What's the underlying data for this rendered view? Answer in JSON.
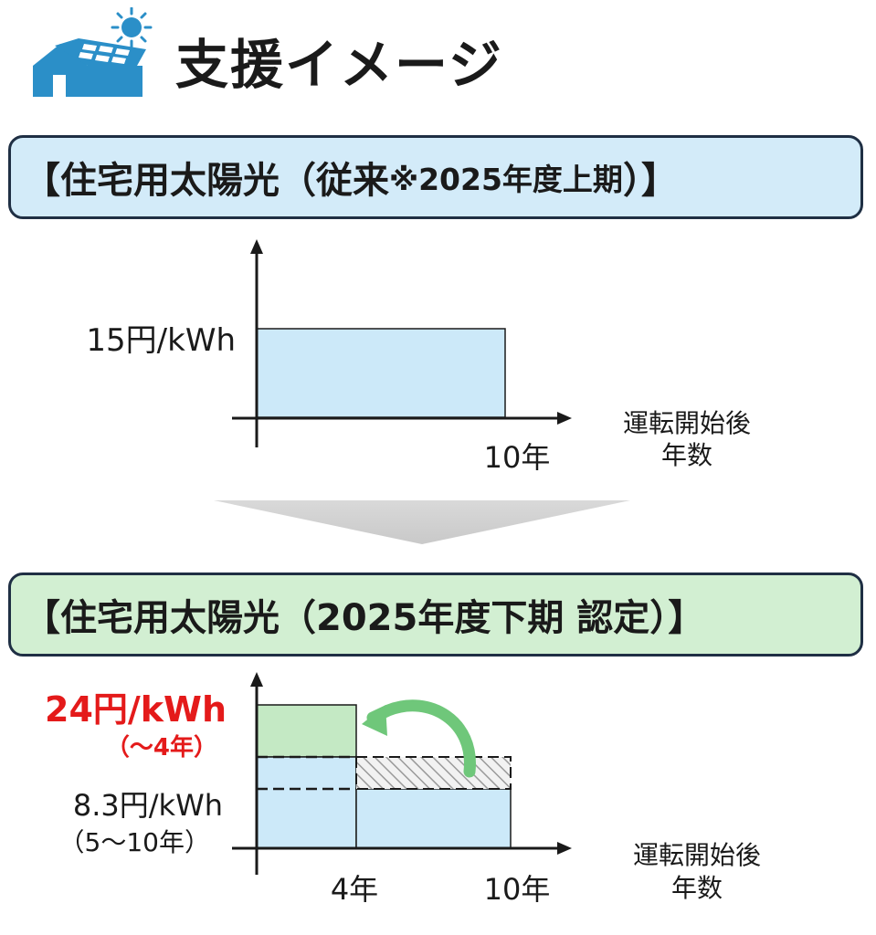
{
  "header": {
    "title": "支援イメージ",
    "logo_icon": "solar-house-icon"
  },
  "colors": {
    "accent_blue": "#2b8fc8",
    "banner_blue": "#d3ebf9",
    "banner_green": "#d2efd2",
    "bar_blue": "#cce9f9",
    "bar_green": "#c4e9c4",
    "arrow_green": "#6fc77a",
    "highlight_red": "#e41a1a"
  },
  "before": {
    "banner_prefix": "【住宅用太陽光（従来 ",
    "banner_note": "※2025年度上期",
    "banner_suffix": "）】",
    "rate_label": "15円/kWh",
    "end_label": "10年",
    "x_axis_label_1": "運転開始後",
    "x_axis_label_2": "年数"
  },
  "after": {
    "banner_text": "【住宅用太陽光（2025年度下期 認定）】",
    "high_rate_label": "24円/kWh",
    "high_rate_period": "（～4年）",
    "low_rate_label": "8.3円/kWh",
    "low_rate_period": "（5～10年）",
    "mid_label": "4年",
    "end_label": "10年",
    "x_axis_label_1": "運転開始後",
    "x_axis_label_2": "年数"
  },
  "transition_icon": "down-arrow-icon",
  "chart_data": [
    {
      "type": "bar",
      "x_unit": "年",
      "series": [
        {
          "start_year": 0,
          "end_year": 10,
          "value": 15
        }
      ],
      "ylim": [
        0,
        15
      ],
      "xlim": [
        0,
        10
      ]
    },
    {
      "type": "bar",
      "x_unit": "年",
      "series": [
        {
          "start_year": 0,
          "end_year": 4,
          "value": 24
        },
        {
          "start_year": 4,
          "end_year": 10,
          "value": 8.3
        }
      ],
      "reference_level": 15,
      "ylim": [
        0,
        24
      ],
      "xlim": [
        0,
        10
      ]
    }
  ]
}
